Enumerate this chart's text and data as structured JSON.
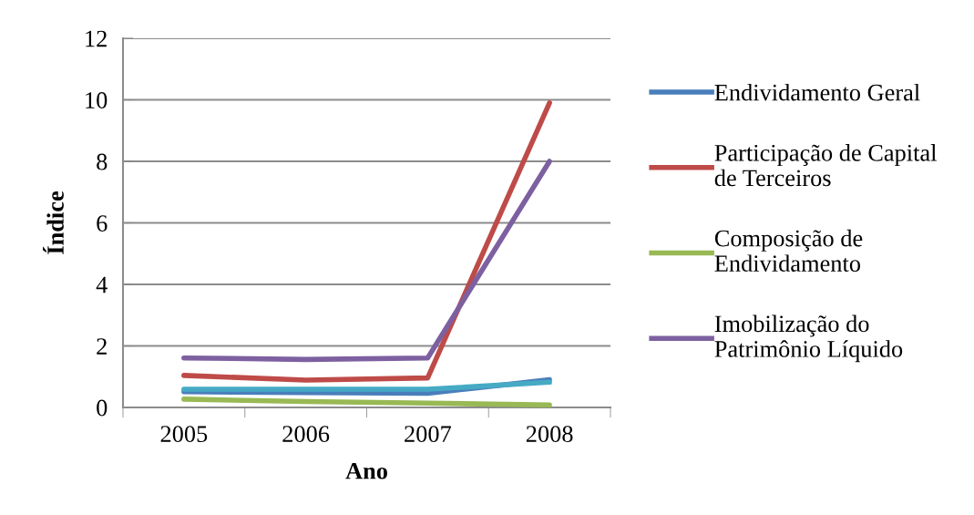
{
  "chart_data": {
    "type": "line",
    "xlabel": "Ano",
    "ylabel": "Índice",
    "categories": [
      "2005",
      "2006",
      "2007",
      "2008"
    ],
    "ylim": [
      0,
      12
    ],
    "yticks": [
      0,
      2,
      4,
      6,
      8,
      10,
      12
    ],
    "grid": "y",
    "legend": "right",
    "marker": "none",
    "line_style": "solid",
    "series": [
      {
        "name": "Endividamento Geral",
        "color": "#4a7ebb",
        "values": [
          0.51,
          0.48,
          0.46,
          0.9
        ]
      },
      {
        "name": "Participação de Capital\nde Terceiros",
        "color": "#be4b48",
        "values": [
          1.04,
          0.89,
          0.96,
          9.9
        ]
      },
      {
        "name": "Composição de\nEndividamento",
        "color": "#98b954",
        "values": [
          0.27,
          0.19,
          0.14,
          0.08
        ]
      },
      {
        "name": "Imobilização do\nPatrimônio Líquido",
        "color": "#7d60a0",
        "values": [
          1.61,
          1.56,
          1.61,
          8.0
        ]
      },
      {
        "color": "#46aac5",
        "values": [
          0.59,
          0.59,
          0.59,
          0.82
        ]
      }
    ]
  }
}
